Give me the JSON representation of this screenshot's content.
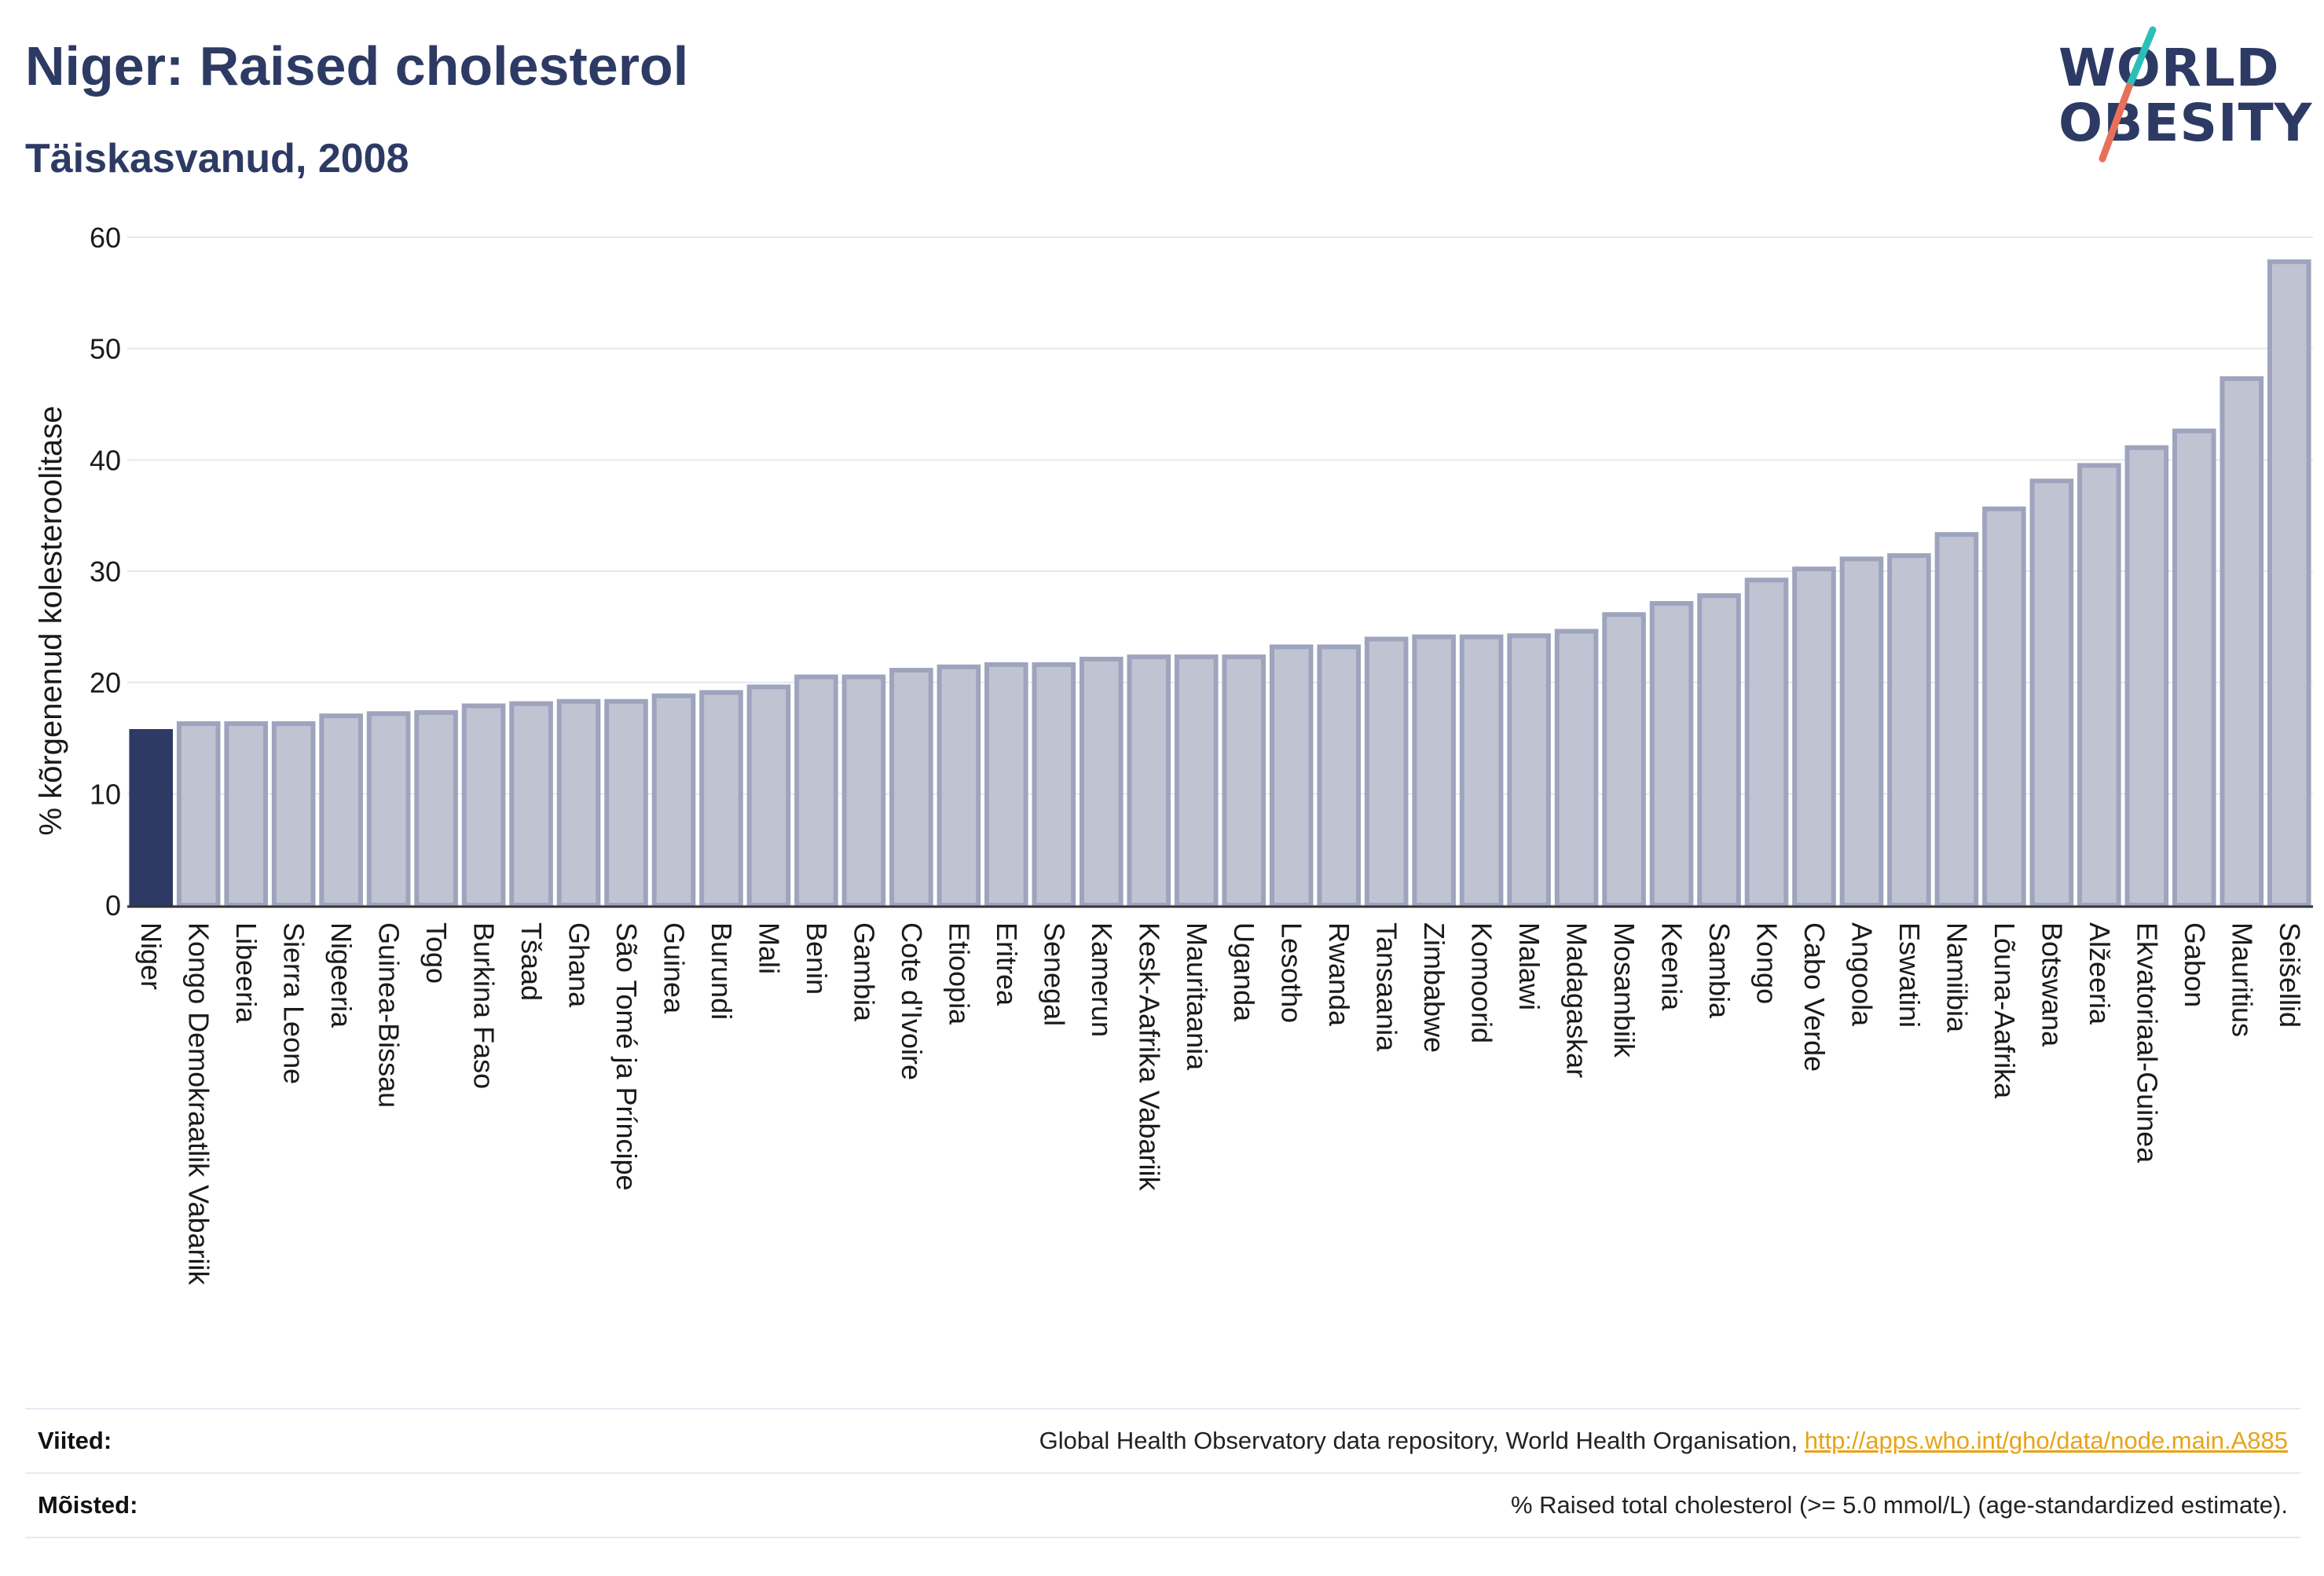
{
  "header": {
    "title": "Niger: Raised cholesterol",
    "subtitle": "Täiskasvanud, 2008"
  },
  "logo": {
    "line1": "WORLD",
    "line2": "OBESITY",
    "colors": {
      "text": "#2d3a64",
      "slash_top": "#2bbfb8",
      "slash_bottom": "#e8705a"
    }
  },
  "colors": {
    "highlight_bar": "#2d3a64",
    "bar_fill": "#c0c4d2",
    "bar_stroke": "#9ea4bd",
    "grid": "#e6e8ef",
    "text": "#1a1a1a",
    "title": "#2d3a64",
    "link": "#e8a316"
  },
  "chart_data": {
    "type": "bar",
    "title": "Niger: Raised cholesterol",
    "subtitle": "Täiskasvanud, 2008",
    "xlabel": "",
    "ylabel": "% kõrgenenud kolesteroolitase",
    "ylim": [
      0,
      60
    ],
    "yticks": [
      0,
      10,
      20,
      30,
      40,
      50,
      60
    ],
    "grid": true,
    "highlight": "Niger",
    "categories": [
      "Niger",
      "Kongo Demokraatlik Vabariik",
      "Libeeria",
      "Sierra Leone",
      "Nigeeria",
      "Guinea-Bissau",
      "Togo",
      "Burkina Faso",
      "Tšaad",
      "Ghana",
      "São Tomé ja Príncipe",
      "Guinea",
      "Burundi",
      "Mali",
      "Benin",
      "Gambia",
      "Cote d'Ivoire",
      "Etioopia",
      "Eritrea",
      "Senegal",
      "Kamerun",
      "Kesk-Aafrika Vabariik",
      "Mauritaania",
      "Uganda",
      "Lesotho",
      "Rwanda",
      "Tansaania",
      "Zimbabwe",
      "Komoorid",
      "Malawi",
      "Madagaskar",
      "Mosambiik",
      "Keenia",
      "Sambia",
      "Kongo",
      "Cabo Verde",
      "Angoola",
      "Eswatini",
      "Namiibia",
      "Lõuna-Aafrika",
      "Botswana",
      "Alžeeria",
      "Ekvatoriaal-Guinea",
      "Gabon",
      "Mauritius",
      "Seišellid"
    ],
    "values": [
      15.6,
      16.3,
      16.3,
      16.3,
      17.0,
      17.2,
      17.3,
      17.9,
      18.1,
      18.3,
      18.3,
      18.8,
      19.1,
      19.6,
      20.5,
      20.5,
      21.1,
      21.4,
      21.6,
      21.6,
      22.1,
      22.3,
      22.3,
      22.3,
      23.2,
      23.2,
      23.9,
      24.1,
      24.1,
      24.2,
      24.6,
      26.1,
      27.1,
      27.8,
      29.2,
      30.2,
      31.1,
      31.4,
      33.3,
      35.6,
      38.1,
      39.5,
      41.1,
      42.6,
      47.3,
      57.8
    ]
  },
  "footer": {
    "sources_label": "Viited:",
    "sources_text": "Global Health Observatory data repository, World Health Organisation, ",
    "sources_link": "http://apps.who.int/gho/data/node.main.A885",
    "definitions_label": "Mõisted:",
    "definitions_text": "% Raised total cholesterol (>= 5.0 mmol/L) (age-standardized estimate)."
  }
}
